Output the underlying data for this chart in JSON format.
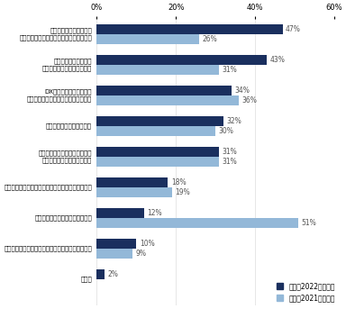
{
  "categories": [
    "若手人材の不足により、\n採用人材の年齢幅を広げざるを得ないため",
    "既存事業拡大に伴う、\n経験者募集が増えているため",
    "DX化を推進するための、\nスペシャリスト募集が増えているため",
    "管理職が不足しているため",
    "業態のシフトチェンジに伴う、\n経験者募集が増えているため",
    "年功序列から成果主義へのシフトが進んでいるため",
    "景気回復の兆しが見えてきたため",
    "事業継承を行うための後継者募集が増えているため",
    "その他"
  ],
  "current_values": [
    47,
    43,
    34,
    32,
    31,
    18,
    12,
    10,
    2
  ],
  "prev_values": [
    26,
    31,
    36,
    30,
    31,
    19,
    51,
    9,
    0
  ],
  "current_color": "#1a2f5e",
  "prev_color": "#93b8d8",
  "current_label": "今回（2022年実施）",
  "prev_label": "前回（2021年実施）",
  "xlim": [
    0,
    60
  ],
  "xticks": [
    0,
    20,
    40,
    60
  ],
  "xticklabels": [
    "0%",
    "20%",
    "40%",
    "60%"
  ],
  "bar_height": 0.32,
  "figsize": [
    3.84,
    3.43
  ],
  "dpi": 100,
  "label_fontsize": 5.0,
  "pct_fontsize": 5.5,
  "legend_fontsize": 5.5
}
